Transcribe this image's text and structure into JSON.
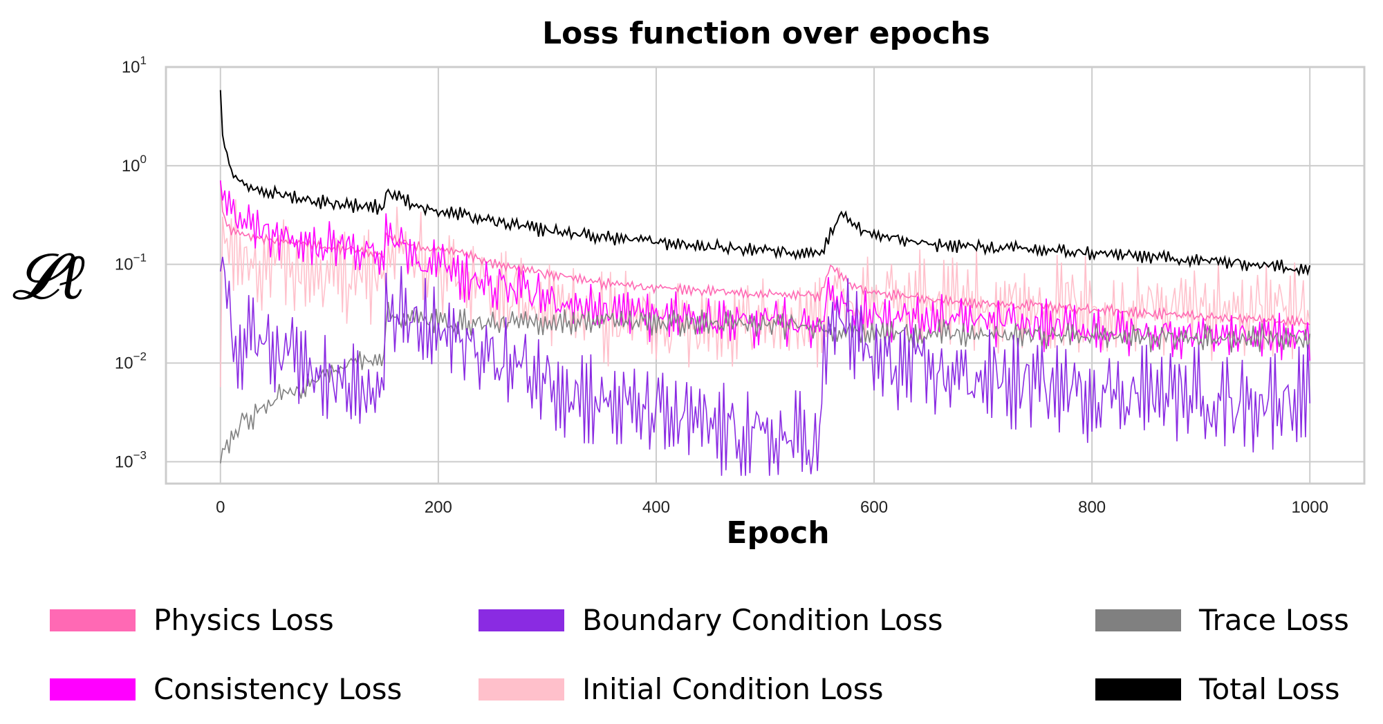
{
  "chart_data": {
    "type": "line",
    "title": "Loss function over epochs",
    "xlabel": "Epoch",
    "ylabel": "𝓛ℓ",
    "x_scale": "linear",
    "y_scale": "log",
    "xlim": [
      -50,
      1050
    ],
    "ylim": [
      0.0006,
      10
    ],
    "x_ticks": [
      0,
      200,
      400,
      600,
      800,
      1000
    ],
    "x_tick_labels": [
      "0",
      "200",
      "400",
      "600",
      "800",
      "1000"
    ],
    "y_ticks": [
      0.001,
      0.01,
      0.1,
      1,
      10
    ],
    "y_tick_labels": [
      {
        "base": "10",
        "exp": "−3"
      },
      {
        "base": "10",
        "exp": "−2"
      },
      {
        "base": "10",
        "exp": "−1"
      },
      {
        "base": "10",
        "exp": "0"
      },
      {
        "base": "10",
        "exp": "1"
      }
    ],
    "grid": true,
    "legend_position": "bottom",
    "series": [
      {
        "name": "Physics Loss",
        "color": "#ff69b4",
        "x": [
          0,
          2,
          5,
          10,
          20,
          40,
          60,
          80,
          100,
          120,
          150,
          152,
          180,
          200,
          220,
          250,
          300,
          350,
          400,
          450,
          500,
          550,
          560,
          580,
          600,
          650,
          700,
          750,
          800,
          850,
          900,
          950,
          1000
        ],
        "y": [
          0.7,
          0.35,
          0.25,
          0.22,
          0.2,
          0.18,
          0.17,
          0.16,
          0.15,
          0.14,
          0.12,
          0.2,
          0.15,
          0.14,
          0.13,
          0.1,
          0.08,
          0.065,
          0.058,
          0.053,
          0.05,
          0.048,
          0.1,
          0.06,
          0.05,
          0.045,
          0.04,
          0.038,
          0.035,
          0.032,
          0.03,
          0.028,
          0.026
        ],
        "osc": 0.06
      },
      {
        "name": "Consistency Loss",
        "color": "#ff00ff",
        "x": [
          0,
          2,
          5,
          10,
          20,
          40,
          60,
          80,
          100,
          120,
          150,
          152,
          180,
          200,
          220,
          250,
          300,
          350,
          400,
          450,
          500,
          550,
          560,
          580,
          600,
          650,
          700,
          750,
          800,
          850,
          900,
          950,
          1000
        ],
        "y": [
          0.65,
          0.5,
          0.35,
          0.3,
          0.25,
          0.2,
          0.18,
          0.16,
          0.15,
          0.14,
          0.13,
          0.22,
          0.12,
          0.1,
          0.08,
          0.06,
          0.045,
          0.035,
          0.03,
          0.028,
          0.026,
          0.025,
          0.05,
          0.035,
          0.03,
          0.028,
          0.026,
          0.024,
          0.022,
          0.02,
          0.02,
          0.019,
          0.018
        ],
        "osc": 0.28
      },
      {
        "name": "Boundary Condition Loss",
        "color": "#8a2be2",
        "x": [
          0,
          2,
          5,
          8,
          12,
          20,
          30,
          50,
          70,
          90,
          110,
          120,
          130,
          150,
          152,
          170,
          200,
          230,
          260,
          300,
          350,
          400,
          450,
          500,
          550,
          553,
          560,
          570,
          600,
          650,
          700,
          750,
          800,
          850,
          900,
          950,
          1000
        ],
        "y": [
          0.07,
          0.12,
          0.09,
          0.05,
          0.02,
          0.012,
          0.02,
          0.015,
          0.012,
          0.01,
          0.006,
          0.006,
          0.005,
          0.0045,
          0.04,
          0.025,
          0.02,
          0.015,
          0.01,
          0.007,
          0.004,
          0.003,
          0.0022,
          0.0017,
          0.0016,
          0.008,
          0.02,
          0.03,
          0.01,
          0.008,
          0.007,
          0.006,
          0.005,
          0.005,
          0.0045,
          0.004,
          0.005
        ],
        "osc": 0.55
      },
      {
        "name": "Initial Condition Loss",
        "color": "#ffc0cb",
        "x": [
          0,
          2,
          5,
          10,
          20,
          40,
          60,
          80,
          100,
          120,
          150,
          152,
          180,
          200,
          220,
          250,
          300,
          350,
          400,
          450,
          500,
          550,
          560,
          580,
          600,
          650,
          700,
          750,
          800,
          850,
          900,
          950,
          1000
        ],
        "y": [
          0.005,
          0.3,
          0.15,
          0.14,
          0.12,
          0.1,
          0.09,
          0.085,
          0.08,
          0.075,
          0.07,
          0.13,
          0.1,
          0.09,
          0.08,
          0.05,
          0.035,
          0.03,
          0.028,
          0.027,
          0.026,
          0.025,
          0.06,
          0.04,
          0.045,
          0.045,
          0.04,
          0.04,
          0.038,
          0.037,
          0.036,
          0.034,
          0.03
        ],
        "osc": 0.55
      },
      {
        "name": "Trace Loss",
        "color": "#808080",
        "x": [
          0,
          2,
          5,
          10,
          20,
          40,
          60,
          80,
          100,
          120,
          150,
          152,
          180,
          200,
          250,
          300,
          350,
          400,
          450,
          500,
          550,
          560,
          600,
          650,
          700,
          750,
          800,
          850,
          900,
          950,
          1000
        ],
        "y": [
          0.001,
          0.0013,
          0.0015,
          0.0018,
          0.0025,
          0.0035,
          0.005,
          0.006,
          0.008,
          0.01,
          0.012,
          0.03,
          0.028,
          0.026,
          0.025,
          0.026,
          0.027,
          0.026,
          0.025,
          0.024,
          0.024,
          0.022,
          0.02,
          0.02,
          0.019,
          0.019,
          0.019,
          0.018,
          0.018,
          0.018,
          0.018
        ],
        "osc": 0.15
      },
      {
        "name": "Total Loss",
        "color": "#000000",
        "x": [
          0,
          2,
          5,
          10,
          20,
          40,
          60,
          80,
          100,
          120,
          150,
          152,
          180,
          200,
          220,
          250,
          300,
          350,
          400,
          450,
          500,
          550,
          560,
          570,
          580,
          600,
          620,
          650,
          700,
          750,
          800,
          850,
          900,
          950,
          1000
        ],
        "y": [
          6,
          2,
          1.3,
          0.85,
          0.65,
          0.55,
          0.5,
          0.45,
          0.42,
          0.4,
          0.38,
          0.55,
          0.4,
          0.34,
          0.32,
          0.27,
          0.22,
          0.19,
          0.17,
          0.15,
          0.14,
          0.13,
          0.2,
          0.35,
          0.25,
          0.2,
          0.18,
          0.16,
          0.15,
          0.14,
          0.13,
          0.12,
          0.11,
          0.1,
          0.09
        ],
        "osc": 0.08
      }
    ]
  }
}
